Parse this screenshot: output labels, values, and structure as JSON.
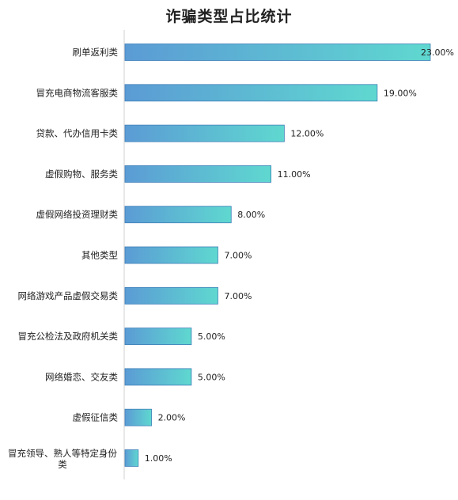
{
  "chart_data": {
    "type": "bar",
    "orientation": "horizontal",
    "title": "诈骗类型占比统计",
    "xlabel": "",
    "ylabel": "",
    "categories": [
      "刷单返利类",
      "冒充电商物流客服类",
      "贷款、代办信用卡类",
      "虚假购物、服务类",
      "虚假网络投资理财类",
      "其他类型",
      "网络游戏产品虚假交易类",
      "冒充公检法及政府机关类",
      "网络婚恋、交友类",
      "虚假征信类",
      "冒充领导、熟人等特定身份类"
    ],
    "values": [
      23,
      19,
      12,
      11,
      8,
      7,
      7,
      5,
      5,
      2,
      1
    ],
    "data_labels": [
      "23.00%",
      "19.00%",
      "12.00%",
      "11.00%",
      "8.00%",
      "7.00%",
      "7.00%",
      "5.00%",
      "5.00%",
      "2.00%",
      "1.00%"
    ],
    "unit": "%",
    "xlim": [
      0,
      23
    ],
    "grid": false,
    "legend": "none",
    "colors": {
      "bar_gradient_start": "#5b9bd5",
      "bar_gradient_end": "#5fd8d0",
      "bar_stroke": "#3f7fb8",
      "axis": "#d0d0d0"
    }
  }
}
